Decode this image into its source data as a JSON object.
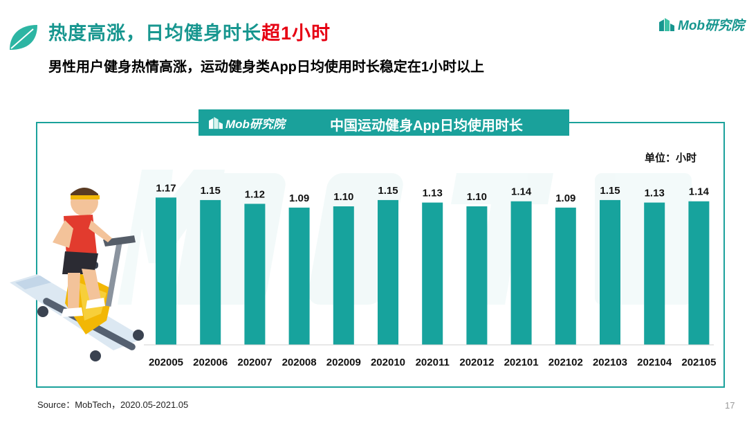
{
  "header": {
    "title_main": "热度高涨，日均健身时长",
    "title_highlight": "超1小时",
    "subtitle": "男性用户健身热情高涨，运动健身类App日均使用时长稳定在1小时以上"
  },
  "brand": {
    "logo_text": "Mob研究院"
  },
  "panel": {
    "logo_text": "Mob研究院",
    "title": "中国运动健身App日均使用时长",
    "unit": "单位：小时"
  },
  "footer": {
    "source": "Source：MobTech，2020.05-2021.05",
    "page_number": "17"
  },
  "colors": {
    "accent": "#1aa19b",
    "title_teal": "#17968f",
    "highlight_red": "#e60012",
    "bar": "#17a39d"
  },
  "chart_data": {
    "type": "bar",
    "title": "中国运动健身App日均使用时长",
    "categories": [
      "202005",
      "202006",
      "202007",
      "202008",
      "202009",
      "202010",
      "202011",
      "202012",
      "202101",
      "202102",
      "202103",
      "202104",
      "202105"
    ],
    "values": [
      1.17,
      1.15,
      1.12,
      1.09,
      1.1,
      1.15,
      1.13,
      1.1,
      1.14,
      1.09,
      1.15,
      1.13,
      1.14
    ],
    "value_labels": [
      "1.17",
      "1.15",
      "1.12",
      "1.09",
      "1.10",
      "1.15",
      "1.13",
      "1.10",
      "1.14",
      "1.09",
      "1.15",
      "1.13",
      "1.14"
    ],
    "xlabel": "",
    "ylabel": "单位：小时",
    "ylim": [
      0,
      1.21
    ],
    "grid": false,
    "legend": "none"
  }
}
